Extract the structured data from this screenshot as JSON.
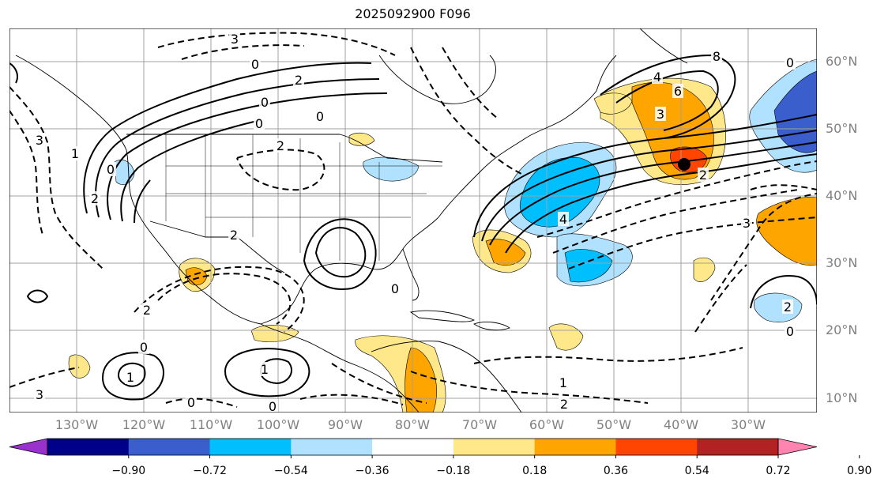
{
  "title": "2025092900 F096",
  "lat_labels": [
    "60°N",
    "50°N",
    "40°N",
    "30°N",
    "20°N",
    "10°N"
  ],
  "lon_labels": [
    "130°W",
    "120°W",
    "110°W",
    "100°W",
    "90°W",
    "80°W",
    "70°W",
    "60°W",
    "50°W",
    "40°W",
    "30°W"
  ],
  "colorbar": {
    "ticks": [
      "−0.90",
      "−0.72",
      "−0.54",
      "−0.36",
      "−0.18",
      "0.18",
      "0.36",
      "0.54",
      "0.72",
      "0.90"
    ],
    "colors": [
      "#9932cc",
      "#00008b",
      "#3a5fcd",
      "#00bfff",
      "#b0e2ff",
      "#ffffff",
      "#ffe88a",
      "#ffa500",
      "#ff4500",
      "#b22222",
      "#ff85b0"
    ]
  },
  "contour_labels": [
    {
      "text": "3",
      "kind": "neg"
    },
    {
      "text": "0",
      "kind": "pos"
    },
    {
      "text": "2",
      "kind": "pos"
    },
    {
      "text": "0",
      "kind": "pos"
    },
    {
      "text": "2",
      "kind": "pos"
    },
    {
      "text": "0",
      "kind": "pos"
    },
    {
      "text": "2",
      "kind": "neg"
    },
    {
      "text": "0",
      "kind": "pos"
    },
    {
      "text": "3",
      "kind": "neg"
    },
    {
      "text": "1",
      "kind": "neg"
    },
    {
      "text": "0",
      "kind": "pos"
    },
    {
      "text": "2",
      "kind": "neg"
    },
    {
      "text": "4",
      "kind": "pos"
    },
    {
      "text": "6",
      "kind": "pos"
    },
    {
      "text": "8",
      "kind": "pos"
    },
    {
      "text": "3",
      "kind": "neg"
    },
    {
      "text": "2",
      "kind": "neg"
    },
    {
      "text": "3",
      "kind": "neg"
    },
    {
      "text": "4",
      "kind": "neg"
    },
    {
      "text": "0",
      "kind": "pos"
    },
    {
      "text": "2",
      "kind": "pos"
    },
    {
      "text": "0",
      "kind": "pos"
    },
    {
      "text": "1",
      "kind": "pos"
    },
    {
      "text": "0",
      "kind": "pos"
    },
    {
      "text": "0",
      "kind": "neg"
    },
    {
      "text": "1",
      "kind": "neg"
    },
    {
      "text": "2",
      "kind": "neg"
    },
    {
      "text": "0",
      "kind": "neg"
    },
    {
      "text": "0",
      "kind": "pos"
    },
    {
      "text": "1",
      "kind": "neg"
    },
    {
      "text": "3",
      "kind": "neg"
    },
    {
      "text": "2",
      "kind": "neg"
    }
  ]
}
